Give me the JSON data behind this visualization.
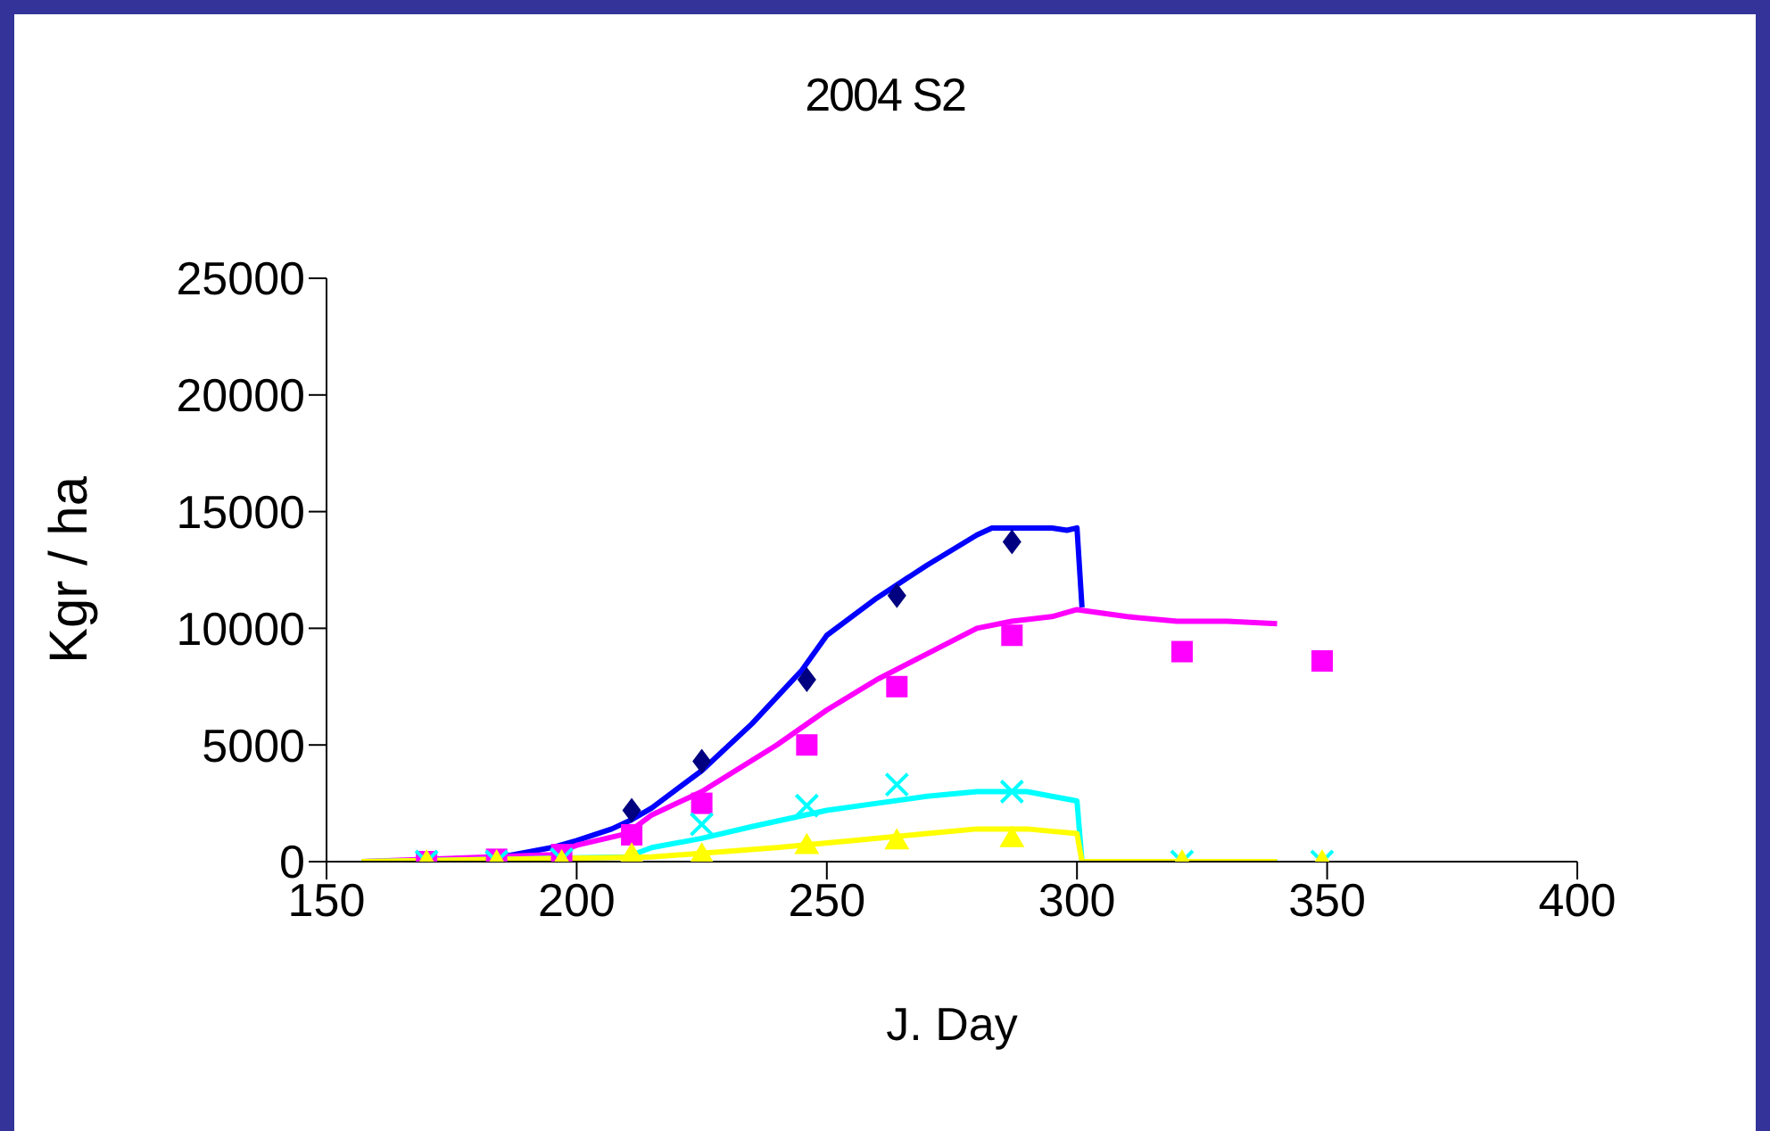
{
  "chart_data": {
    "type": "line",
    "title": "2004 S2",
    "xlabel": "J. Day",
    "ylabel": "Kgr / ha",
    "xlim": [
      150,
      400
    ],
    "xticks": [
      150,
      200,
      250,
      300,
      350,
      400
    ],
    "ylim": [
      0,
      25000
    ],
    "yticks": [
      0,
      5000,
      10000,
      15000,
      20000,
      25000
    ],
    "grid": false,
    "series": [
      {
        "color": "#0000ff",
        "marker": "none",
        "x": [
          157,
          178,
          185,
          195,
          200,
          207,
          211,
          215,
          225,
          235,
          245,
          250,
          260,
          270,
          280,
          283,
          295,
          298,
          300,
          301
        ],
        "values": [
          0,
          0,
          200,
          600,
          900,
          1400,
          1800,
          2300,
          3900,
          5900,
          8200,
          9700,
          11300,
          12700,
          14000,
          14300,
          14300,
          14200,
          14300,
          10900
        ]
      },
      {
        "color": "#ff00ff",
        "marker": "none",
        "x": [
          157,
          195,
          200,
          210,
          215,
          225,
          240,
          250,
          260,
          270,
          280,
          287,
          295,
          300,
          310,
          320,
          330,
          340
        ],
        "values": [
          0,
          300,
          700,
          1200,
          2000,
          3000,
          5000,
          6500,
          7800,
          8900,
          10000,
          10300,
          10500,
          10800,
          10500,
          10300,
          10300,
          10200
        ]
      },
      {
        "color": "#00ffff",
        "marker": "none",
        "x": [
          157,
          210,
          215,
          225,
          235,
          250,
          260,
          270,
          280,
          290,
          300,
          301,
          340
        ],
        "values": [
          0,
          200,
          600,
          1000,
          1500,
          2200,
          2500,
          2800,
          3000,
          3000,
          2600,
          0,
          0
        ]
      },
      {
        "color": "#ffff00",
        "marker": "none",
        "x": [
          157,
          215,
          240,
          255,
          270,
          280,
          290,
          300,
          301,
          340
        ],
        "values": [
          0,
          200,
          600,
          900,
          1200,
          1400,
          1400,
          1200,
          0,
          0
        ]
      },
      {
        "type": "scatter",
        "color": "#000080",
        "marker": "diamond",
        "x": [
          211,
          225,
          246,
          264,
          287
        ],
        "values": [
          2200,
          4300,
          7800,
          11400,
          13700
        ]
      },
      {
        "type": "scatter",
        "color": "#ff00ff",
        "marker": "square",
        "x": [
          170,
          184,
          197,
          211,
          225,
          246,
          264,
          287,
          321,
          349
        ],
        "values": [
          0,
          100,
          300,
          1150,
          2500,
          5000,
          7500,
          9700,
          9000,
          8600
        ]
      },
      {
        "type": "scatter",
        "color": "#00ffff",
        "marker": "cross",
        "x": [
          170,
          184,
          197,
          225,
          246,
          264,
          287,
          321,
          349
        ],
        "values": [
          0,
          0,
          100,
          1600,
          2400,
          3300,
          3000,
          0,
          0
        ]
      },
      {
        "type": "scatter",
        "color": "#ffff00",
        "marker": "triangle",
        "x": [
          170,
          184,
          197,
          211,
          225,
          246,
          264,
          287,
          321,
          349
        ],
        "values": [
          0,
          0,
          0,
          300,
          300,
          700,
          900,
          1000,
          0,
          0
        ]
      }
    ]
  }
}
